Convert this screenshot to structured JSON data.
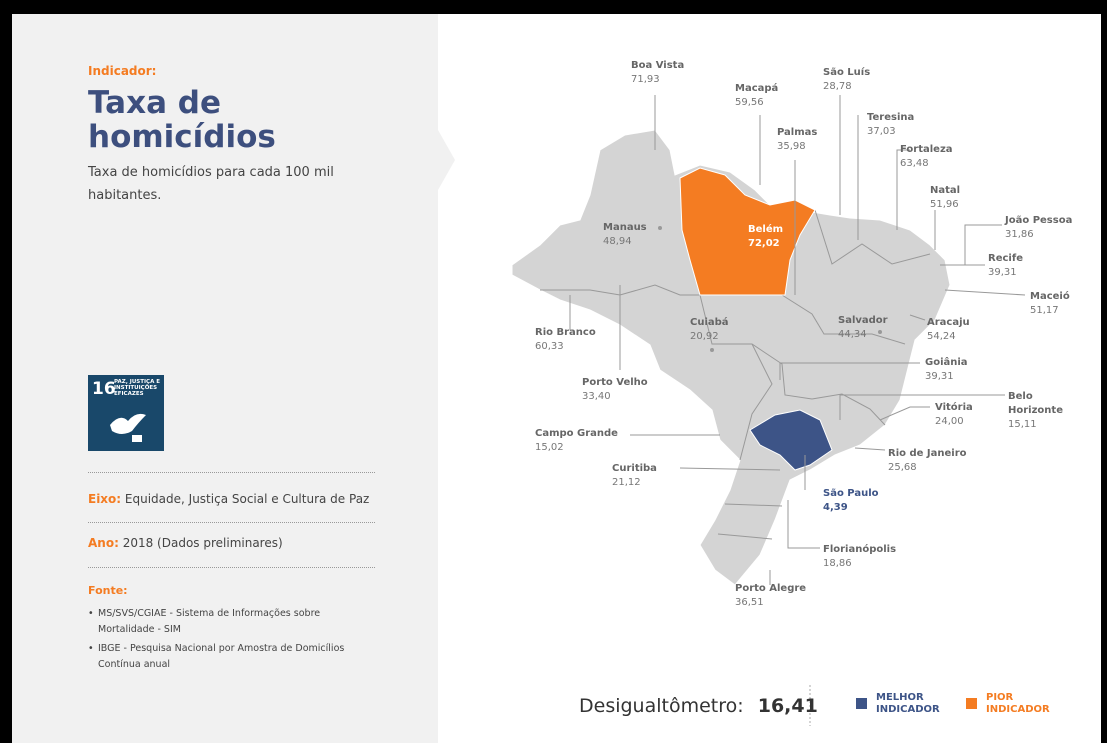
{
  "header": {
    "label": "Indicador:",
    "title_lines": [
      "Taxa de",
      "homicídios"
    ],
    "description": "Taxa de homicídios para cada 100 mil habitantes."
  },
  "sdg": {
    "number": "16",
    "text": "PAZ, JUSTIÇA E INSTITUIÇÕES EFICAZES"
  },
  "axis": {
    "label": "Eixo:",
    "value": "Equidade, Justiça Social e Cultura de Paz"
  },
  "year": {
    "label": "Ano:",
    "value": "2018 (Dados preliminares)"
  },
  "source": {
    "label": "Fonte:",
    "items": [
      "MS/SVS/CGIAE - Sistema de Informações sobre Mortalidade - SIM",
      "IBGE - Pesquisa Nacional por Amostra de Domicílios Contínua anual"
    ]
  },
  "cities": [
    {
      "name": "Boa Vista",
      "value": "71,93"
    },
    {
      "name": "Macapá",
      "value": "59,56"
    },
    {
      "name": "São Luís",
      "value": "28,78"
    },
    {
      "name": "Teresina",
      "value": "37,03"
    },
    {
      "name": "Palmas",
      "value": "35,98"
    },
    {
      "name": "Fortaleza",
      "value": "63,48"
    },
    {
      "name": "Natal",
      "value": "51,96"
    },
    {
      "name": "João Pessoa",
      "value": "31,86"
    },
    {
      "name": "Recife",
      "value": "39,31"
    },
    {
      "name": "Maceió",
      "value": "51,17"
    },
    {
      "name": "Aracaju",
      "value": "54,24"
    },
    {
      "name": "Manaus",
      "value": "48,94"
    },
    {
      "name": "Belém",
      "value": "72,02"
    },
    {
      "name": "Rio Branco",
      "value": "60,33"
    },
    {
      "name": "Porto Velho",
      "value": "33,40"
    },
    {
      "name": "Cuiabá",
      "value": "20,92"
    },
    {
      "name": "Salvador",
      "value": "44,34"
    },
    {
      "name": "Goiânia",
      "value": "39,31"
    },
    {
      "name": "Belo Horizonte",
      "value": "15,11"
    },
    {
      "name": "Vitória",
      "value": "24,00"
    },
    {
      "name": "Campo Grande",
      "value": "15,02"
    },
    {
      "name": "Rio de Janeiro",
      "value": "25,68"
    },
    {
      "name": "Curitiba",
      "value": "21,12"
    },
    {
      "name": "São Paulo",
      "value": "4,39"
    },
    {
      "name": "Florianópolis",
      "value": "18,86"
    },
    {
      "name": "Porto Alegre",
      "value": "36,51"
    }
  ],
  "inequality": {
    "label": "Desigualtômetro:",
    "value": "16,41"
  },
  "legend": [
    {
      "label": "MELHOR INDICADOR",
      "color": "#3d5487"
    },
    {
      "label": "PIOR INDICADOR",
      "color": "#f47c22"
    }
  ]
}
